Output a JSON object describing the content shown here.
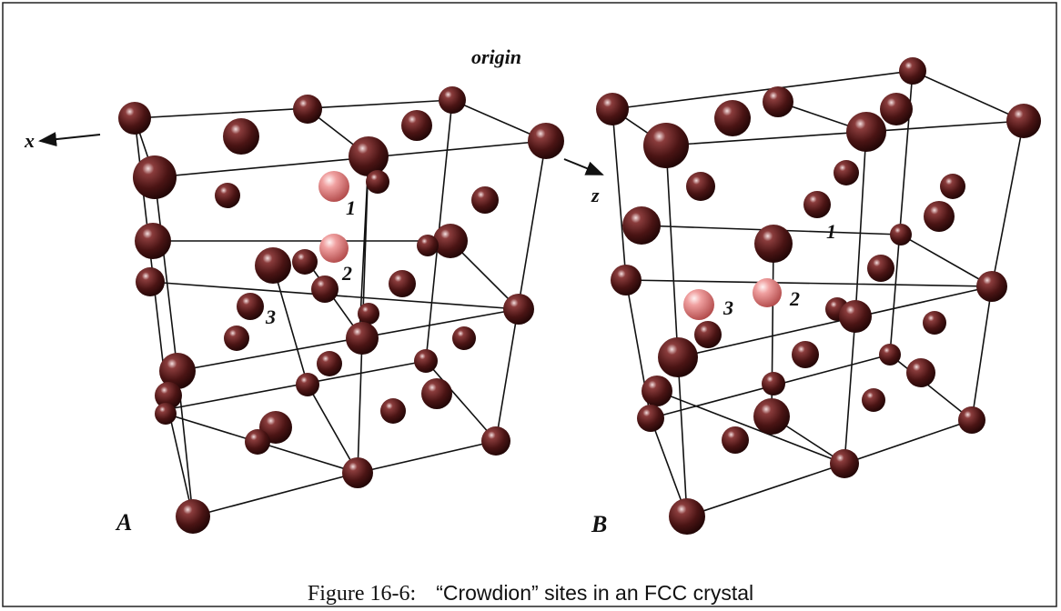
{
  "panels": [
    {
      "label": "A",
      "axis_labels": [
        "x",
        "origin"
      ],
      "site_labels": [
        "1",
        "2",
        "3"
      ]
    },
    {
      "label": "B",
      "axis_labels": [
        "z"
      ],
      "site_labels": [
        "1",
        "2",
        "3"
      ]
    }
  ],
  "caption": {
    "number": "Figure 16-6:",
    "text": "“Crowdion” sites in an FCC crystal"
  }
}
